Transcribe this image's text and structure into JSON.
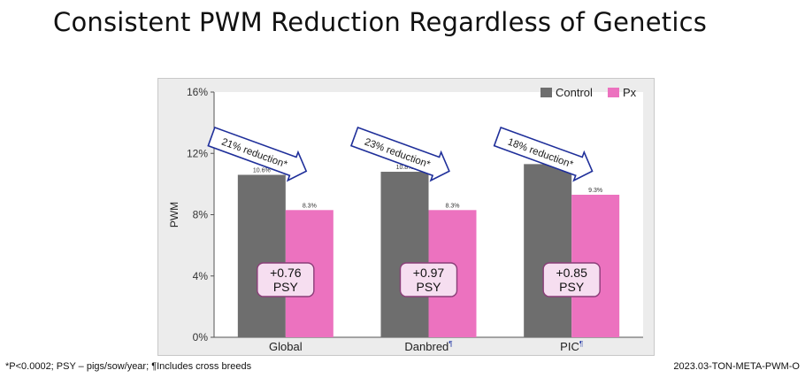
{
  "title": "Consistent PWM Reduction Regardless of Genetics",
  "footnote": "*P<0.0002; PSY – pigs/sow/year; ¶Includes cross breeds",
  "doc_code": "2023.03-TON-META-PWM-O",
  "colors": {
    "control": "#6e6e6e",
    "px": "#ec72bf",
    "arrow_fill": "#ffffff",
    "arrow_stroke": "#1f2f9a",
    "badge_fill": "#f6def0",
    "badge_stroke": "#8a3e78",
    "plot_bg": "#ffffff"
  },
  "chart_data": {
    "type": "bar",
    "categories": [
      "Global",
      "Danbred",
      "PIC"
    ],
    "category_marks": [
      "",
      "¶",
      "¶"
    ],
    "series": [
      {
        "name": "Control",
        "values": [
          10.6,
          10.8,
          11.3
        ],
        "labels": [
          "10.6%",
          "10.8%",
          "11.3%"
        ]
      },
      {
        "name": "Px",
        "values": [
          8.3,
          8.3,
          9.3
        ],
        "labels": [
          "8.3%",
          "8.3%",
          "9.3%"
        ]
      }
    ],
    "reductions": [
      "21% reduction*",
      "23% reduction*",
      "18% reduction*"
    ],
    "psy_gains": [
      {
        "value": "+0.76",
        "unit": "PSY"
      },
      {
        "value": "+0.97",
        "unit": "PSY"
      },
      {
        "value": "+0.85",
        "unit": "PSY"
      }
    ],
    "ylabel": "PWM",
    "xlabel": "",
    "ylim": [
      0,
      16
    ],
    "yticks": [
      "0%",
      "4%",
      "8%",
      "12%",
      "16%"
    ],
    "ytick_values": [
      0,
      4,
      8,
      12,
      16
    ],
    "legend_position": "top-right",
    "grid": false
  }
}
